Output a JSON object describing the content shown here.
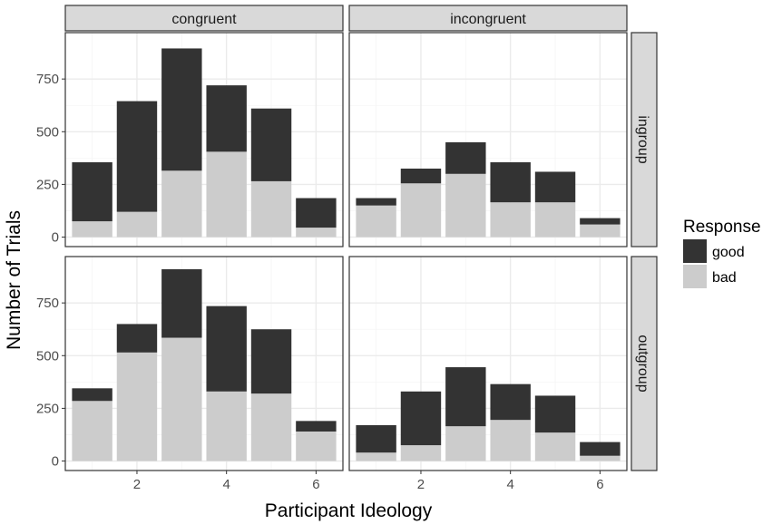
{
  "chart_data": {
    "type": "bar",
    "stacked": true,
    "xlabel": "Participant Ideology",
    "ylabel": "Number of Trials",
    "x": [
      1,
      2,
      3,
      4,
      5,
      6
    ],
    "x_ticks": [
      2,
      4,
      6
    ],
    "x_tick_labels": [
      "2",
      "4",
      "6"
    ],
    "xlim": [
      0.4,
      6.6
    ],
    "y_ticks": [
      0,
      250,
      500,
      750
    ],
    "y_tick_labels": [
      "0",
      "250",
      "500",
      "750"
    ],
    "ylim": [
      -45,
      970
    ],
    "grid": true,
    "legend": {
      "title": "Response",
      "position": "right",
      "entries": [
        {
          "label": "good",
          "color": "#333333"
        },
        {
          "label": "bad",
          "color": "#cccccc"
        }
      ]
    },
    "columns": [
      "congruent",
      "incongruent"
    ],
    "rows": [
      "ingroup",
      "outgroup"
    ],
    "colors": {
      "good": "#333333",
      "bad": "#cccccc",
      "panel_bg": "#ffffff",
      "grid_major": "#ebebeb",
      "grid_minor": "#f5f5f5",
      "strip_bg": "#d9d9d9",
      "border": "#333333"
    },
    "panels": [
      {
        "column": "congruent",
        "row": "ingroup",
        "series": [
          {
            "name": "bad",
            "values": [
              75,
              120,
              315,
              405,
              265,
              45
            ]
          },
          {
            "name": "good",
            "values": [
              280,
              525,
              580,
              315,
              345,
              140
            ]
          }
        ]
      },
      {
        "column": "incongruent",
        "row": "ingroup",
        "series": [
          {
            "name": "bad",
            "values": [
              150,
              255,
              300,
              165,
              165,
              60
            ]
          },
          {
            "name": "good",
            "values": [
              35,
              70,
              150,
              190,
              145,
              30
            ]
          }
        ]
      },
      {
        "column": "congruent",
        "row": "outgroup",
        "series": [
          {
            "name": "bad",
            "values": [
              285,
              515,
              585,
              330,
              320,
              140
            ]
          },
          {
            "name": "good",
            "values": [
              60,
              135,
              325,
              405,
              305,
              50
            ]
          }
        ]
      },
      {
        "column": "incongruent",
        "row": "outgroup",
        "series": [
          {
            "name": "bad",
            "values": [
              40,
              75,
              165,
              195,
              135,
              25
            ]
          },
          {
            "name": "good",
            "values": [
              130,
              255,
              280,
              170,
              175,
              65
            ]
          }
        ]
      }
    ]
  }
}
